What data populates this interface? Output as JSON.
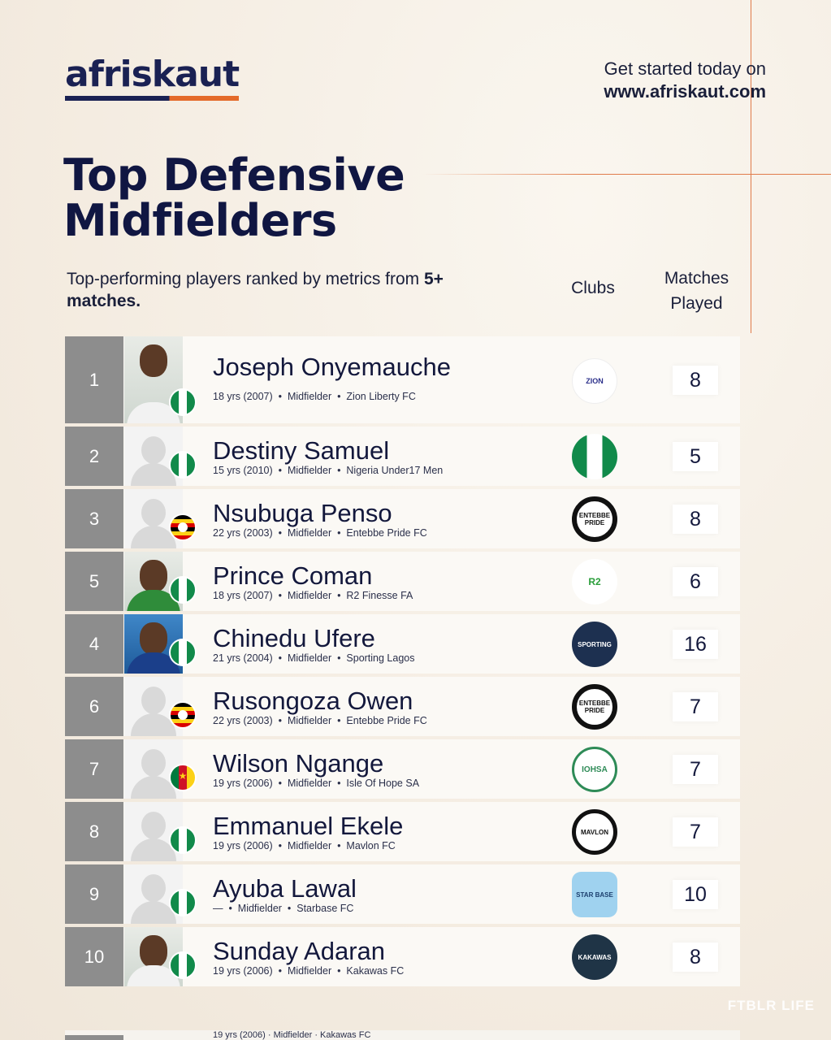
{
  "brand": {
    "logo": "afriskaut",
    "cta_line1": "Get started today on",
    "cta_line2": "www.afriskaut.com"
  },
  "title": {
    "line1": "Top Defensive",
    "line2": "Midfielders"
  },
  "subtitle": {
    "text": "Top-performing players ranked by metrics from",
    "bold": "5+ matches."
  },
  "columns": {
    "clubs": "Clubs",
    "matches_line1": "Matches",
    "matches_line2": "Played"
  },
  "players": [
    {
      "rank": "1",
      "name": "Joseph Onyemauche",
      "age": "18 yrs (2007)",
      "position": "Midfielder",
      "club": "Zion Liberty FC",
      "matches": "8",
      "flag": "ng",
      "club_badge": "ZION"
    },
    {
      "rank": "2",
      "name": "Destiny Samuel",
      "age": "15 yrs (2010)",
      "position": "Midfielder",
      "club": "Nigeria Under17 Men",
      "matches": "5",
      "flag": "ng",
      "club_badge": ""
    },
    {
      "rank": "3",
      "name": "Nsubuga Penso",
      "age": "22 yrs (2003)",
      "position": "Midfielder",
      "club": "Entebbe Pride FC",
      "matches": "8",
      "flag": "ug",
      "club_badge": "ENTEBBE PRIDE"
    },
    {
      "rank": "5",
      "name": "Prince Coman",
      "age": "18 yrs (2007)",
      "position": "Midfielder",
      "club": "R2 Finesse FA",
      "matches": "6",
      "flag": "ng",
      "club_badge": "R2"
    },
    {
      "rank": "4",
      "name": "Chinedu Ufere",
      "age": "21 yrs (2004)",
      "position": "Midfielder",
      "club": "Sporting Lagos",
      "matches": "16",
      "flag": "ng",
      "club_badge": "SPORTING"
    },
    {
      "rank": "6",
      "name": "Rusongoza Owen",
      "age": "22 yrs (2003)",
      "position": "Midfielder",
      "club": "Entebbe Pride FC",
      "matches": "7",
      "flag": "ug",
      "club_badge": "ENTEBBE PRIDE"
    },
    {
      "rank": "7",
      "name": "Wilson Ngange",
      "age": "19 yrs (2006)",
      "position": "Midfielder",
      "club": "Isle Of Hope SA",
      "matches": "7",
      "flag": "cm",
      "club_badge": "IOHSA"
    },
    {
      "rank": "8",
      "name": "Emmanuel Ekele",
      "age": "19 yrs (2006)",
      "position": "Midfielder",
      "club": "Mavlon FC",
      "matches": "7",
      "flag": "ng",
      "club_badge": "MAVLON"
    },
    {
      "rank": "9",
      "name": "Ayuba Lawal",
      "age": "—",
      "position": "Midfielder",
      "club": "Starbase FC",
      "matches": "10",
      "flag": "ng",
      "club_badge": "STAR BASE"
    },
    {
      "rank": "10",
      "name": "Sunday Adaran",
      "age": "19 yrs (2006)",
      "position": "Midfielder",
      "club": "Kakawas FC",
      "matches": "8",
      "flag": "ng",
      "club_badge": "KAKAWAS"
    }
  ],
  "overflow_row": {
    "text": "19 yrs (2006) · Midfielder · Kakawas FC"
  },
  "watermark": "FTBLR LIFE",
  "colors": {
    "navy": "#101642",
    "orange": "#e46a2a",
    "rank_bg": "#8d8d8d",
    "background": "#f5efe6"
  }
}
